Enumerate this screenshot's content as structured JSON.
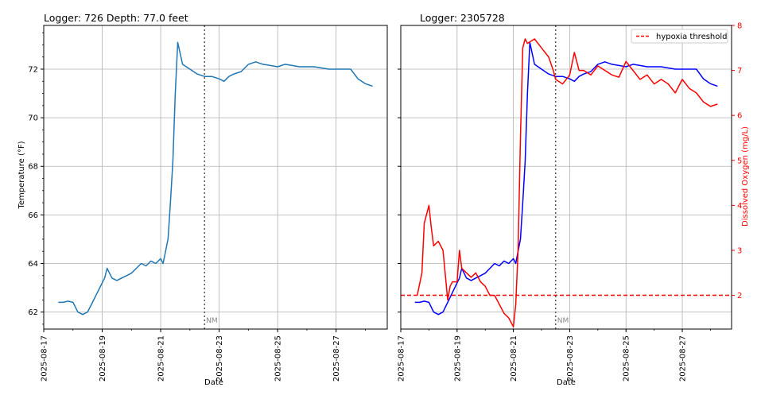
{
  "chart_data": [
    {
      "type": "line",
      "title": "Logger: 726 Depth: 77.0 feet",
      "xlabel": "Date",
      "ylabel": "Temperature (°F)",
      "xlim": [
        "2025-08-17",
        "2025-08-28T18:00"
      ],
      "ylim": [
        61.3,
        73.8
      ],
      "x_ticks": [
        "2025-08-17",
        "2025-08-19",
        "2025-08-21",
        "2025-08-23",
        "2025-08-25",
        "2025-08-27"
      ],
      "y_ticks": [
        62,
        64,
        66,
        68,
        70,
        72
      ],
      "grid": true,
      "annotations": [
        {
          "text": "NM",
          "x": "2025-08-22T12:00",
          "style": "vertical dotted line"
        }
      ],
      "series": [
        {
          "color": "#1f77b4",
          "x": [
            "2025-08-17T12:00",
            "2025-08-17T16:00",
            "2025-08-17T20:00",
            "2025-08-18T00:00",
            "2025-08-18T04:00",
            "2025-08-18T08:00",
            "2025-08-18T12:00",
            "2025-08-18T16:00",
            "2025-08-18T20:00",
            "2025-08-19T00:00",
            "2025-08-19T02:00",
            "2025-08-19T04:00",
            "2025-08-19T08:00",
            "2025-08-19T12:00",
            "2025-08-19T16:00",
            "2025-08-19T20:00",
            "2025-08-20T00:00",
            "2025-08-20T04:00",
            "2025-08-20T08:00",
            "2025-08-20T12:00",
            "2025-08-20T16:00",
            "2025-08-20T20:00",
            "2025-08-21T00:00",
            "2025-08-21T02:00",
            "2025-08-21T04:00",
            "2025-08-21T06:00",
            "2025-08-21T08:00",
            "2025-08-21T10:00",
            "2025-08-21T12:00",
            "2025-08-21T14:00",
            "2025-08-21T18:00",
            "2025-08-22T00:00",
            "2025-08-22T06:00",
            "2025-08-22T12:00",
            "2025-08-22T18:00",
            "2025-08-23T00:00",
            "2025-08-23T04:00",
            "2025-08-23T08:00",
            "2025-08-23T12:00",
            "2025-08-23T18:00",
            "2025-08-24T00:00",
            "2025-08-24T06:00",
            "2025-08-24T12:00",
            "2025-08-24T18:00",
            "2025-08-25T00:00",
            "2025-08-25T06:00",
            "2025-08-25T12:00",
            "2025-08-25T18:00",
            "2025-08-26T00:00",
            "2025-08-26T06:00",
            "2025-08-26T12:00",
            "2025-08-26T18:00",
            "2025-08-27T00:00",
            "2025-08-27T06:00",
            "2025-08-27T12:00",
            "2025-08-27T18:00",
            "2025-08-28T00:00",
            "2025-08-28T06:00"
          ],
          "y": [
            62.4,
            62.4,
            62.45,
            62.4,
            62.0,
            61.9,
            62.0,
            62.4,
            62.8,
            63.2,
            63.4,
            63.8,
            63.4,
            63.3,
            63.4,
            63.5,
            63.6,
            63.8,
            64.0,
            63.9,
            64.1,
            64.0,
            64.2,
            64.0,
            64.5,
            65.0,
            66.5,
            68.2,
            71.0,
            73.1,
            72.2,
            72.0,
            71.8,
            71.7,
            71.7,
            71.6,
            71.5,
            71.7,
            71.8,
            71.9,
            72.2,
            72.3,
            72.2,
            72.15,
            72.1,
            72.2,
            72.15,
            72.1,
            72.1,
            72.1,
            72.05,
            72.0,
            72.0,
            72.0,
            72.0,
            71.6,
            71.4,
            71.3
          ]
        }
      ]
    },
    {
      "type": "line",
      "title": "Logger: 2305728",
      "xlabel": "Date",
      "ylabel_right": "Dissolved Oxygen (mg/L)",
      "xlim": [
        "2025-08-17",
        "2025-08-28T18:00"
      ],
      "ylim_right": [
        1.25,
        8.0
      ],
      "x_ticks": [
        "2025-08-17",
        "2025-08-19",
        "2025-08-21",
        "2025-08-23",
        "2025-08-25",
        "2025-08-27"
      ],
      "y_ticks_right": [
        2,
        3,
        4,
        5,
        6,
        7,
        8
      ],
      "grid": true,
      "legend": {
        "position": "top-right",
        "entries": [
          "hypoxia threshold"
        ]
      },
      "annotations": [
        {
          "text": "NM",
          "x": "2025-08-22T12:00",
          "style": "vertical dotted line"
        }
      ],
      "hypoxia_threshold": 2.0,
      "series": [
        {
          "name": "",
          "color": "#0000ff",
          "axis": "temperature",
          "x": [
            "2025-08-17T12:00",
            "2025-08-17T16:00",
            "2025-08-17T20:00",
            "2025-08-18T00:00",
            "2025-08-18T04:00",
            "2025-08-18T08:00",
            "2025-08-18T12:00",
            "2025-08-18T16:00",
            "2025-08-18T20:00",
            "2025-08-19T00:00",
            "2025-08-19T02:00",
            "2025-08-19T04:00",
            "2025-08-19T08:00",
            "2025-08-19T12:00",
            "2025-08-19T16:00",
            "2025-08-19T20:00",
            "2025-08-20T00:00",
            "2025-08-20T04:00",
            "2025-08-20T08:00",
            "2025-08-20T12:00",
            "2025-08-20T16:00",
            "2025-08-20T20:00",
            "2025-08-21T00:00",
            "2025-08-21T02:00",
            "2025-08-21T04:00",
            "2025-08-21T06:00",
            "2025-08-21T08:00",
            "2025-08-21T10:00",
            "2025-08-21T12:00",
            "2025-08-21T14:00",
            "2025-08-21T18:00",
            "2025-08-22T00:00",
            "2025-08-22T06:00",
            "2025-08-22T12:00",
            "2025-08-22T18:00",
            "2025-08-23T00:00",
            "2025-08-23T04:00",
            "2025-08-23T08:00",
            "2025-08-23T12:00",
            "2025-08-23T18:00",
            "2025-08-24T00:00",
            "2025-08-24T06:00",
            "2025-08-24T12:00",
            "2025-08-24T18:00",
            "2025-08-25T00:00",
            "2025-08-25T06:00",
            "2025-08-25T12:00",
            "2025-08-25T18:00",
            "2025-08-26T00:00",
            "2025-08-26T06:00",
            "2025-08-26T12:00",
            "2025-08-26T18:00",
            "2025-08-27T00:00",
            "2025-08-27T06:00",
            "2025-08-27T12:00",
            "2025-08-27T18:00",
            "2025-08-28T00:00",
            "2025-08-28T06:00"
          ],
          "y": [
            62.4,
            62.4,
            62.45,
            62.4,
            62.0,
            61.9,
            62.0,
            62.4,
            62.8,
            63.2,
            63.4,
            63.8,
            63.4,
            63.3,
            63.4,
            63.5,
            63.6,
            63.8,
            64.0,
            63.9,
            64.1,
            64.0,
            64.2,
            64.0,
            64.5,
            65.0,
            66.5,
            68.2,
            71.0,
            73.1,
            72.2,
            72.0,
            71.8,
            71.7,
            71.7,
            71.6,
            71.5,
            71.7,
            71.8,
            71.9,
            72.2,
            72.3,
            72.2,
            72.15,
            72.1,
            72.2,
            72.15,
            72.1,
            72.1,
            72.1,
            72.05,
            72.0,
            72.0,
            72.0,
            72.0,
            71.6,
            71.4,
            71.3
          ]
        },
        {
          "name": "",
          "color": "#ff0000",
          "axis": "dissolved_oxygen",
          "x": [
            "2025-08-17T14:00",
            "2025-08-17T18:00",
            "2025-08-17T20:00",
            "2025-08-18T00:00",
            "2025-08-18T02:00",
            "2025-08-18T04:00",
            "2025-08-18T08:00",
            "2025-08-18T12:00",
            "2025-08-18T16:00",
            "2025-08-18T18:00",
            "2025-08-18T20:00",
            "2025-08-19T00:00",
            "2025-08-19T02:00",
            "2025-08-19T04:00",
            "2025-08-19T08:00",
            "2025-08-19T12:00",
            "2025-08-19T16:00",
            "2025-08-19T20:00",
            "2025-08-20T00:00",
            "2025-08-20T04:00",
            "2025-08-20T08:00",
            "2025-08-20T12:00",
            "2025-08-20T16:00",
            "2025-08-20T20:00",
            "2025-08-21T00:00",
            "2025-08-21T02:00",
            "2025-08-21T04:00",
            "2025-08-21T06:00",
            "2025-08-21T08:00",
            "2025-08-21T10:00",
            "2025-08-21T12:00",
            "2025-08-21T18:00",
            "2025-08-22T00:00",
            "2025-08-22T06:00",
            "2025-08-22T10:00",
            "2025-08-22T12:00",
            "2025-08-22T18:00",
            "2025-08-23T00:00",
            "2025-08-23T04:00",
            "2025-08-23T08:00",
            "2025-08-23T12:00",
            "2025-08-23T18:00",
            "2025-08-24T00:00",
            "2025-08-24T06:00",
            "2025-08-24T12:00",
            "2025-08-24T18:00",
            "2025-08-25T00:00",
            "2025-08-25T06:00",
            "2025-08-25T12:00",
            "2025-08-25T18:00",
            "2025-08-26T00:00",
            "2025-08-26T06:00",
            "2025-08-26T12:00",
            "2025-08-26T18:00",
            "2025-08-27T00:00",
            "2025-08-27T06:00",
            "2025-08-27T12:00",
            "2025-08-27T18:00",
            "2025-08-28T00:00",
            "2025-08-28T06:00"
          ],
          "y": [
            2.0,
            2.5,
            3.6,
            4.0,
            3.5,
            3.1,
            3.2,
            3.0,
            1.9,
            2.2,
            2.3,
            2.3,
            3.0,
            2.6,
            2.5,
            2.4,
            2.5,
            2.3,
            2.2,
            2.0,
            2.0,
            1.8,
            1.6,
            1.5,
            1.3,
            1.8,
            3.0,
            5.5,
            7.5,
            7.7,
            7.6,
            7.7,
            7.5,
            7.3,
            7.0,
            6.8,
            6.7,
            6.9,
            7.4,
            7.0,
            7.0,
            6.9,
            7.1,
            7.0,
            6.9,
            6.85,
            7.2,
            7.0,
            6.8,
            6.9,
            6.7,
            6.8,
            6.7,
            6.5,
            6.8,
            6.6,
            6.5,
            6.3,
            6.2,
            6.25
          ]
        }
      ]
    }
  ]
}
